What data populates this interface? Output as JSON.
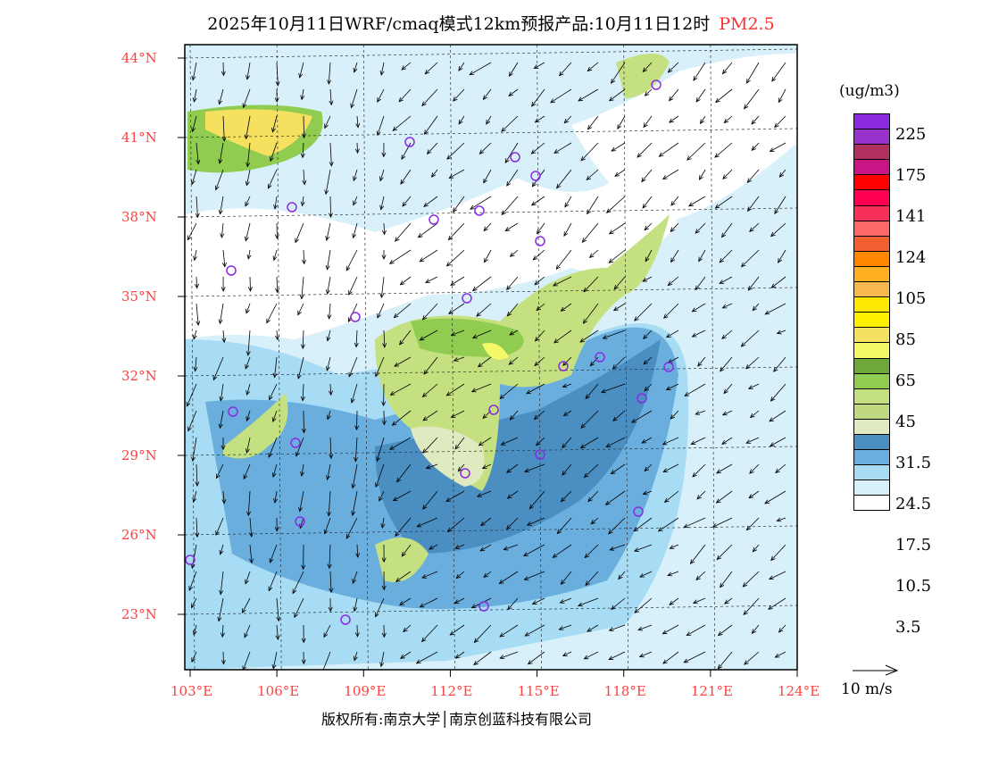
{
  "title": {
    "main": "2025年10月11日WRF/cmaq模式12km预报产品:10月11日12时",
    "species": "PM2.5"
  },
  "lat_labels": [
    "44°N",
    "41°N",
    "38°N",
    "35°N",
    "32°N",
    "29°N",
    "26°N",
    "23°N"
  ],
  "lon_labels": [
    "103°E",
    "106°E",
    "109°E",
    "112°E",
    "115°E",
    "118°E",
    "121°E",
    "124°E"
  ],
  "legend": {
    "unit": "(ug/m3)",
    "colors": [
      "#8a2be2",
      "#9932cc",
      "#b03060",
      "#c71585",
      "#ff0000",
      "#ff0050",
      "#f83058",
      "#ff6868",
      "#f06030",
      "#ff8800",
      "#ffb020",
      "#f8b850",
      "#ffe800",
      "#fff000",
      "#f5e060",
      "#f5f868",
      "#6ea83a",
      "#90cc50",
      "#c5e080",
      "#c0d880",
      "#e0eac0",
      "#4a8ec2",
      "#6aaede",
      "#a8dcf4",
      "#d8f0fa",
      "#ffffff"
    ],
    "labels": [
      "225",
      "175",
      "141",
      "124",
      "105",
      "85",
      "65",
      "45",
      "31.5",
      "24.5",
      "17.5",
      "10.5",
      "3.5"
    ]
  },
  "wind_reference": "10 m/s",
  "footer": "版权所有:南京大学│南京创蓝科技有限公司"
}
